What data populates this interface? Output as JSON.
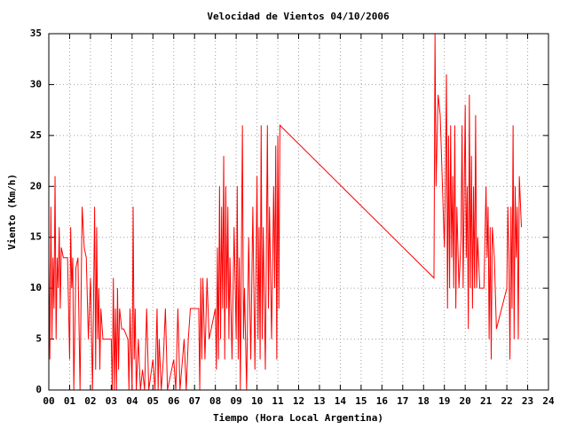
{
  "chart_data": {
    "type": "line",
    "title": "Velocidad de Vientos 04/10/2006",
    "x_label": "Tiempo (Hora Local Argentina)",
    "y_label": "Viento (Km/h)",
    "color": "#ff0000",
    "grid": true,
    "xlim": [
      0,
      24
    ],
    "ylim": [
      0,
      35
    ],
    "xticks": [
      {
        "value": 0,
        "label": "00"
      },
      {
        "value": 1,
        "label": "01"
      },
      {
        "value": 2,
        "label": "02"
      },
      {
        "value": 3,
        "label": "03"
      },
      {
        "value": 4,
        "label": "04"
      },
      {
        "value": 5,
        "label": "05"
      },
      {
        "value": 6,
        "label": "06"
      },
      {
        "value": 7,
        "label": "07"
      },
      {
        "value": 8,
        "label": "08"
      },
      {
        "value": 9,
        "label": "09"
      },
      10,
      11,
      12,
      13,
      14,
      15,
      16,
      17,
      18,
      19,
      20,
      21,
      22,
      23,
      24
    ],
    "yticks": [
      0,
      5,
      10,
      15,
      20,
      25,
      30,
      35
    ],
    "x": [
      0,
      0.05,
      0.1,
      0.15,
      0.2,
      0.25,
      0.3,
      0.35,
      0.4,
      0.45,
      0.5,
      0.55,
      0.6,
      0.7,
      0.9,
      1.0,
      1.05,
      1.1,
      1.15,
      1.2,
      1.3,
      1.4,
      1.5,
      1.6,
      1.7,
      1.8,
      1.9,
      2.0,
      2.1,
      2.2,
      2.25,
      2.3,
      2.35,
      2.4,
      2.45,
      2.5,
      2.6,
      3.0,
      3.05,
      3.1,
      3.15,
      3.2,
      3.25,
      3.3,
      3.35,
      3.4,
      3.5,
      3.6,
      3.8,
      3.85,
      3.9,
      4.0,
      4.05,
      4.1,
      4.15,
      4.2,
      4.3,
      4.4,
      4.5,
      4.6,
      4.7,
      4.8,
      5.0,
      5.1,
      5.2,
      5.25,
      5.3,
      5.4,
      5.5,
      5.6,
      5.7,
      6.0,
      6.1,
      6.2,
      6.3,
      6.5,
      6.6,
      6.7,
      6.8,
      7.2,
      7.25,
      7.3,
      7.35,
      7.4,
      7.5,
      7.6,
      7.7,
      7.8,
      8.0,
      8.05,
      8.1,
      8.15,
      8.2,
      8.25,
      8.3,
      8.35,
      8.4,
      8.45,
      8.5,
      8.55,
      8.6,
      8.65,
      8.7,
      8.8,
      8.9,
      9.0,
      9.05,
      9.1,
      9.15,
      9.2,
      9.3,
      9.35,
      9.4,
      9.5,
      9.6,
      9.7,
      9.8,
      9.9,
      10.0,
      10.05,
      10.1,
      10.15,
      10.2,
      10.25,
      10.3,
      10.4,
      10.5,
      10.55,
      10.6,
      10.7,
      10.8,
      10.85,
      10.9,
      10.95,
      11.0,
      11.05,
      11.1,
      18.5,
      18.55,
      18.6,
      18.7,
      18.8,
      19.0,
      19.05,
      19.1,
      19.15,
      19.2,
      19.25,
      19.3,
      19.35,
      19.4,
      19.45,
      19.5,
      19.55,
      19.6,
      19.7,
      19.8,
      19.85,
      19.9,
      20.0,
      20.05,
      20.1,
      20.15,
      20.2,
      20.25,
      20.3,
      20.35,
      20.4,
      20.45,
      20.5,
      20.55,
      20.6,
      20.7,
      20.9,
      21.0,
      21.05,
      21.1,
      21.15,
      21.2,
      21.25,
      21.3,
      21.4,
      21.5,
      22.0,
      22.05,
      22.1,
      22.15,
      22.2,
      22.25,
      22.3,
      22.35,
      22.4,
      22.45,
      22.5,
      22.55,
      22.6,
      22.7
    ],
    "values": [
      13,
      3,
      18,
      5,
      13,
      8,
      21,
      5,
      13,
      10,
      16,
      8,
      14,
      13,
      13,
      3,
      16,
      10,
      13,
      0,
      12,
      13,
      0,
      18,
      14,
      13,
      5,
      11,
      0,
      18,
      2,
      16,
      5,
      10,
      2,
      8,
      5,
      5,
      0,
      11,
      0,
      8,
      0,
      10,
      2,
      8,
      6,
      6,
      5,
      0,
      8,
      0,
      18,
      3,
      8,
      0,
      5,
      0,
      2,
      0,
      8,
      0,
      3,
      0,
      8,
      0,
      5,
      0,
      3,
      8,
      0,
      3,
      0,
      8,
      0,
      5,
      0,
      5,
      8,
      8,
      0,
      11,
      3,
      11,
      3,
      11,
      5,
      6,
      8,
      2,
      14,
      3,
      20,
      5,
      18,
      8,
      23,
      3,
      20,
      8,
      18,
      5,
      13,
      3,
      16,
      5,
      20,
      3,
      13,
      0,
      26,
      5,
      10,
      0,
      15,
      3,
      18,
      2,
      21,
      5,
      16,
      3,
      26,
      5,
      16,
      2,
      26,
      8,
      18,
      5,
      20,
      10,
      24,
      3,
      25,
      8,
      26,
      11,
      35,
      20,
      29,
      27,
      14,
      20,
      31,
      8,
      25,
      10,
      26,
      13,
      21,
      10,
      26,
      8,
      18,
      10,
      15,
      26,
      10,
      28,
      13,
      20,
      6,
      29,
      10,
      23,
      8,
      20,
      10,
      27,
      10,
      15,
      10,
      10,
      20,
      13,
      18,
      5,
      16,
      3,
      16,
      13,
      6,
      10,
      18,
      13,
      3,
      18,
      8,
      26,
      5,
      20,
      13,
      18,
      5,
      21,
      16
    ]
  }
}
